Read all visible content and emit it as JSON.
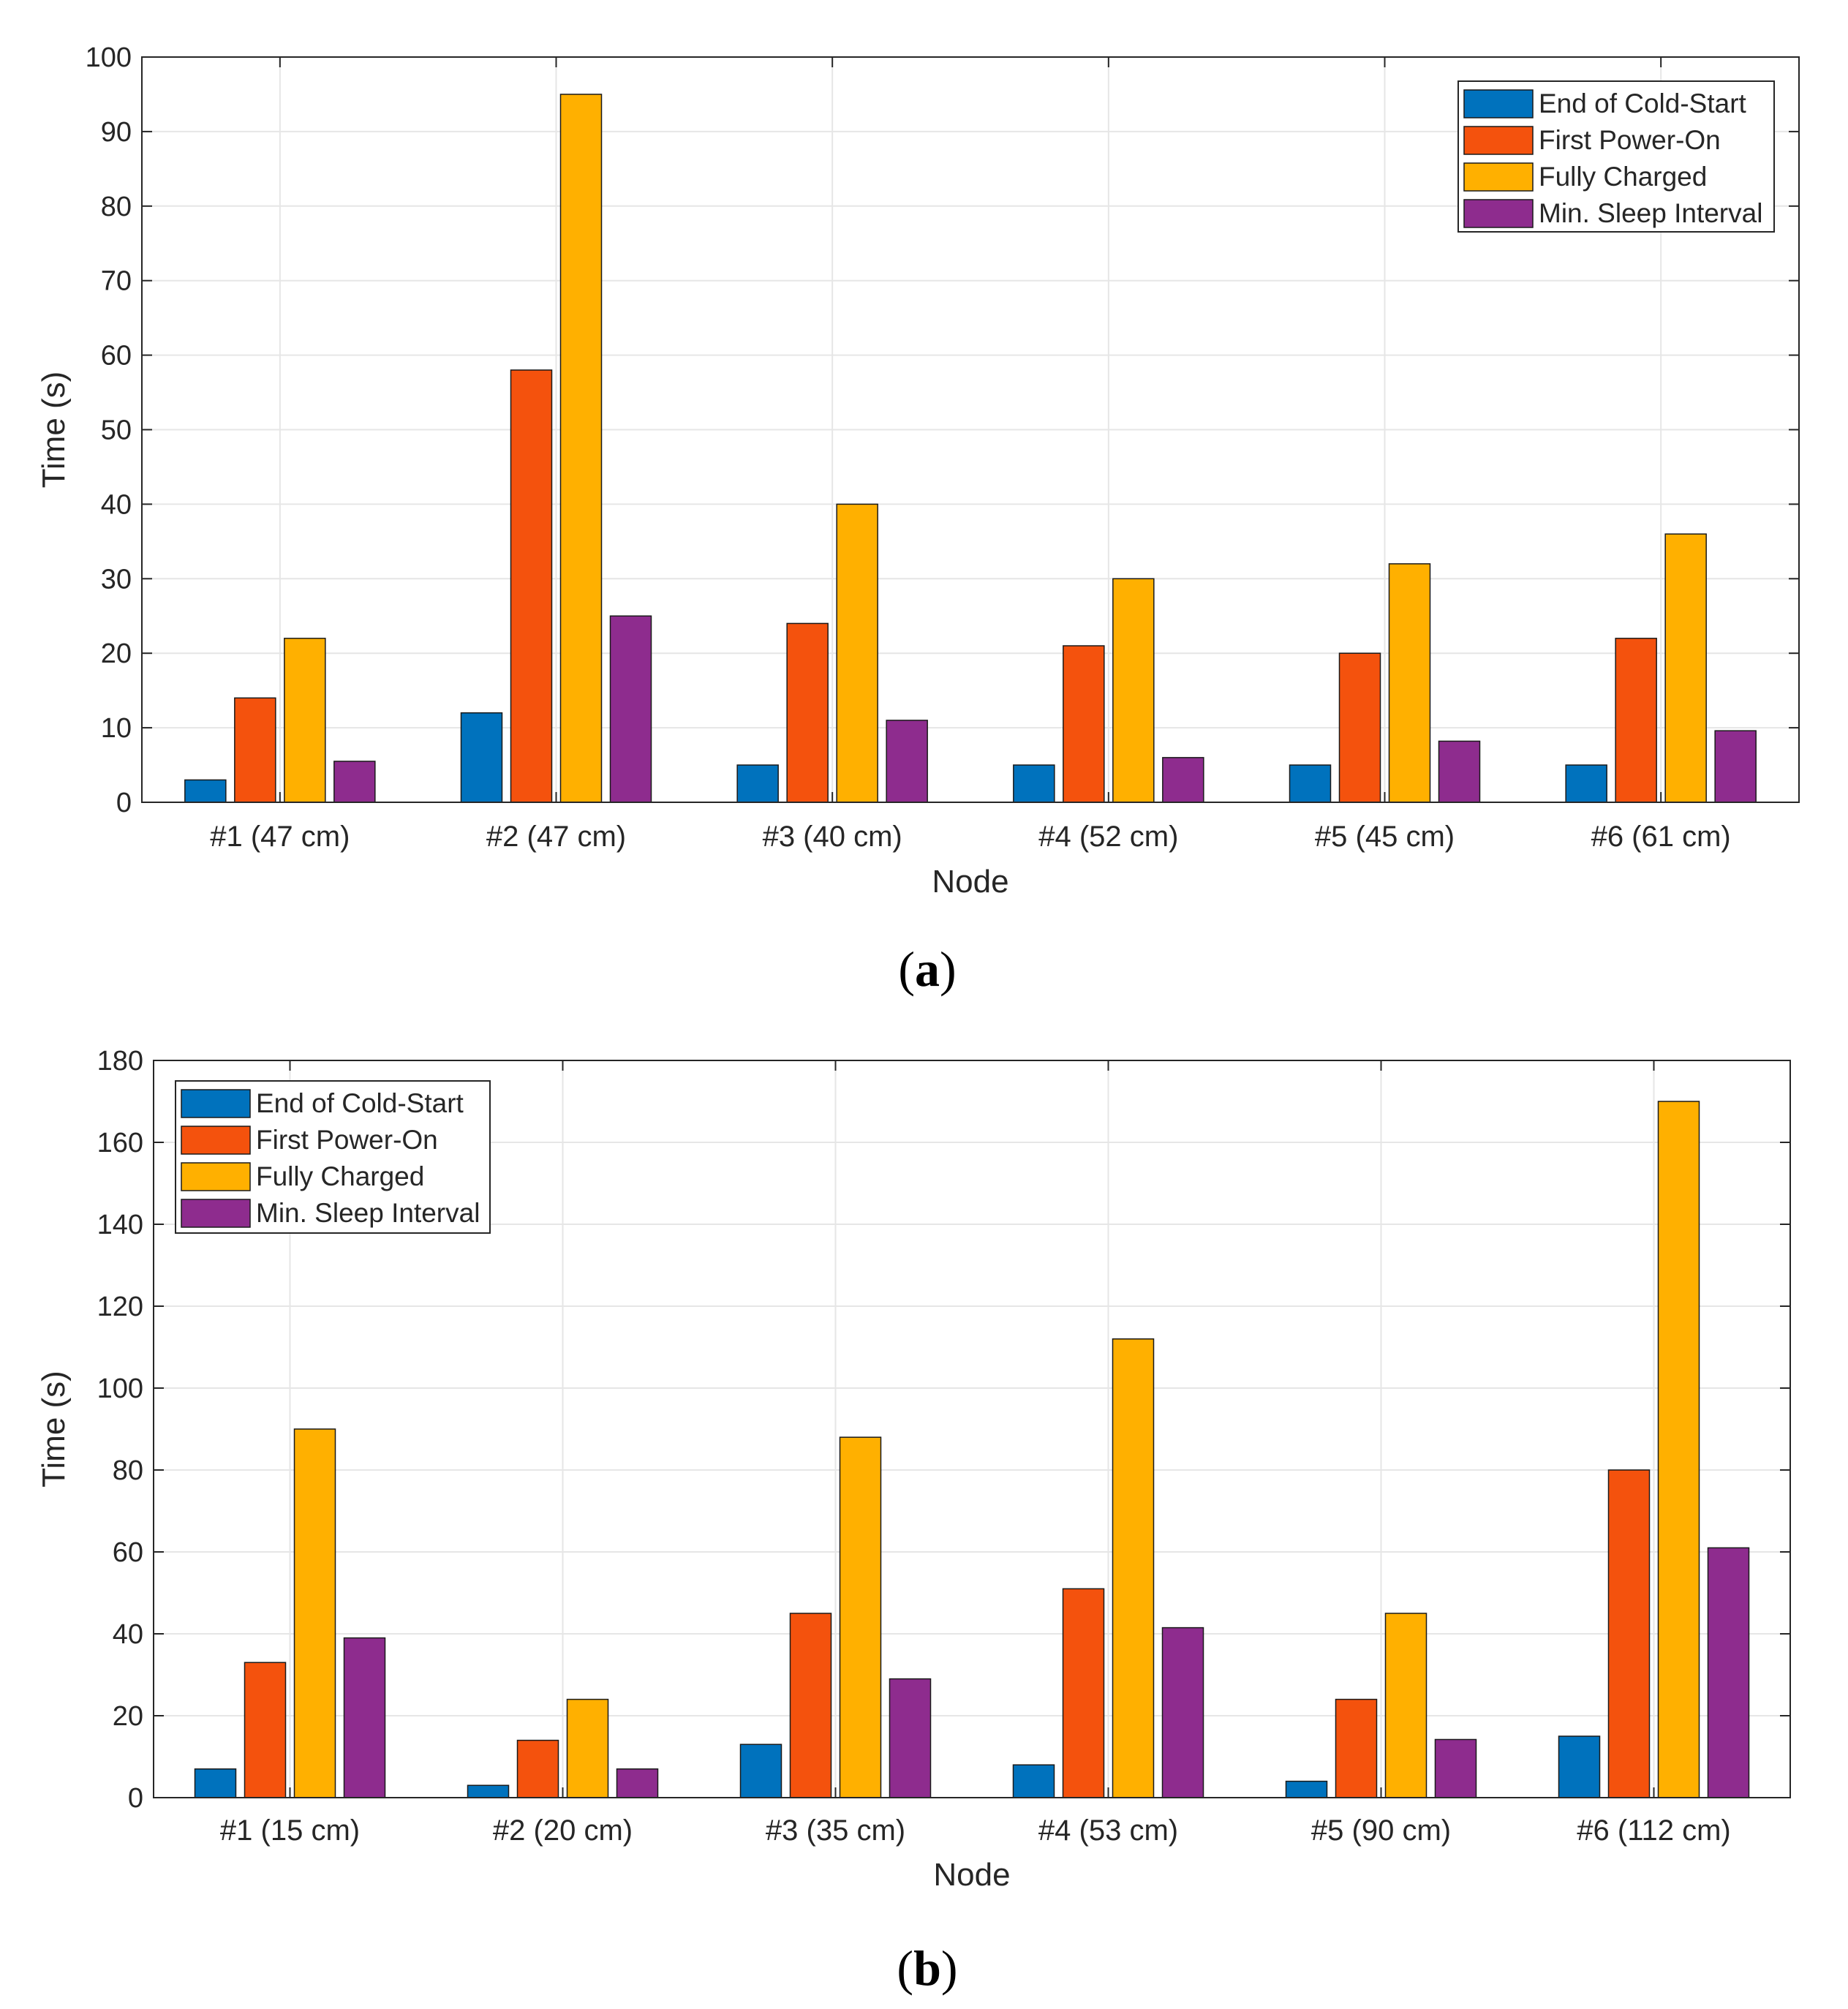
{
  "colors": {
    "series": [
      "#0072BD",
      "#F4520D",
      "#FFB000",
      "#8E2C8E"
    ],
    "grid": "#e6e6e6",
    "axis": "#262626",
    "bar_edge": "#1a1a1a"
  },
  "chart_data": [
    {
      "type": "bar",
      "caption_open": "(",
      "caption_letter": "a",
      "caption_close": ")",
      "xlabel": "Node",
      "ylabel": "Time (s)",
      "ylim": [
        0,
        100
      ],
      "yticks": [
        "0",
        "10",
        "20",
        "30",
        "40",
        "50",
        "60",
        "70",
        "80",
        "90",
        "100"
      ],
      "grid": true,
      "legend_position": "top-right",
      "categories": [
        "#1 (47 cm)",
        "#2 (47 cm)",
        "#3 (40 cm)",
        "#4 (52 cm)",
        "#5 (45 cm)",
        "#6 (61 cm)"
      ],
      "series": [
        {
          "name": "End of Cold-Start",
          "values": [
            3,
            12,
            5,
            5,
            5,
            5
          ]
        },
        {
          "name": "First Power-On",
          "values": [
            14,
            58,
            24,
            21,
            20,
            22
          ]
        },
        {
          "name": "Fully Charged",
          "values": [
            22,
            95,
            40,
            30,
            32,
            36
          ]
        },
        {
          "name": "Min. Sleep Interval",
          "values": [
            5.5,
            25,
            11,
            6,
            8.2,
            9.6
          ]
        }
      ]
    },
    {
      "type": "bar",
      "caption_open": "(",
      "caption_letter": "b",
      "caption_close": ")",
      "xlabel": "Node",
      "ylabel": "Time (s)",
      "ylim": [
        0,
        180
      ],
      "yticks": [
        "0",
        "20",
        "40",
        "60",
        "80",
        "100",
        "120",
        "140",
        "160",
        "180"
      ],
      "grid": true,
      "legend_position": "top-left",
      "categories": [
        "#1 (15 cm)",
        "#2 (20 cm)",
        "#3 (35 cm)",
        "#4 (53 cm)",
        "#5 (90 cm)",
        "#6 (112 cm)"
      ],
      "series": [
        {
          "name": "End of Cold-Start",
          "values": [
            7,
            3,
            13,
            8,
            4,
            15
          ]
        },
        {
          "name": "First Power-On",
          "values": [
            33,
            14,
            45,
            51,
            24,
            80
          ]
        },
        {
          "name": "Fully Charged",
          "values": [
            90,
            24,
            88,
            112,
            45,
            170
          ]
        },
        {
          "name": "Min. Sleep Interval",
          "values": [
            39,
            7,
            29,
            41.5,
            14.2,
            61
          ]
        }
      ]
    }
  ]
}
